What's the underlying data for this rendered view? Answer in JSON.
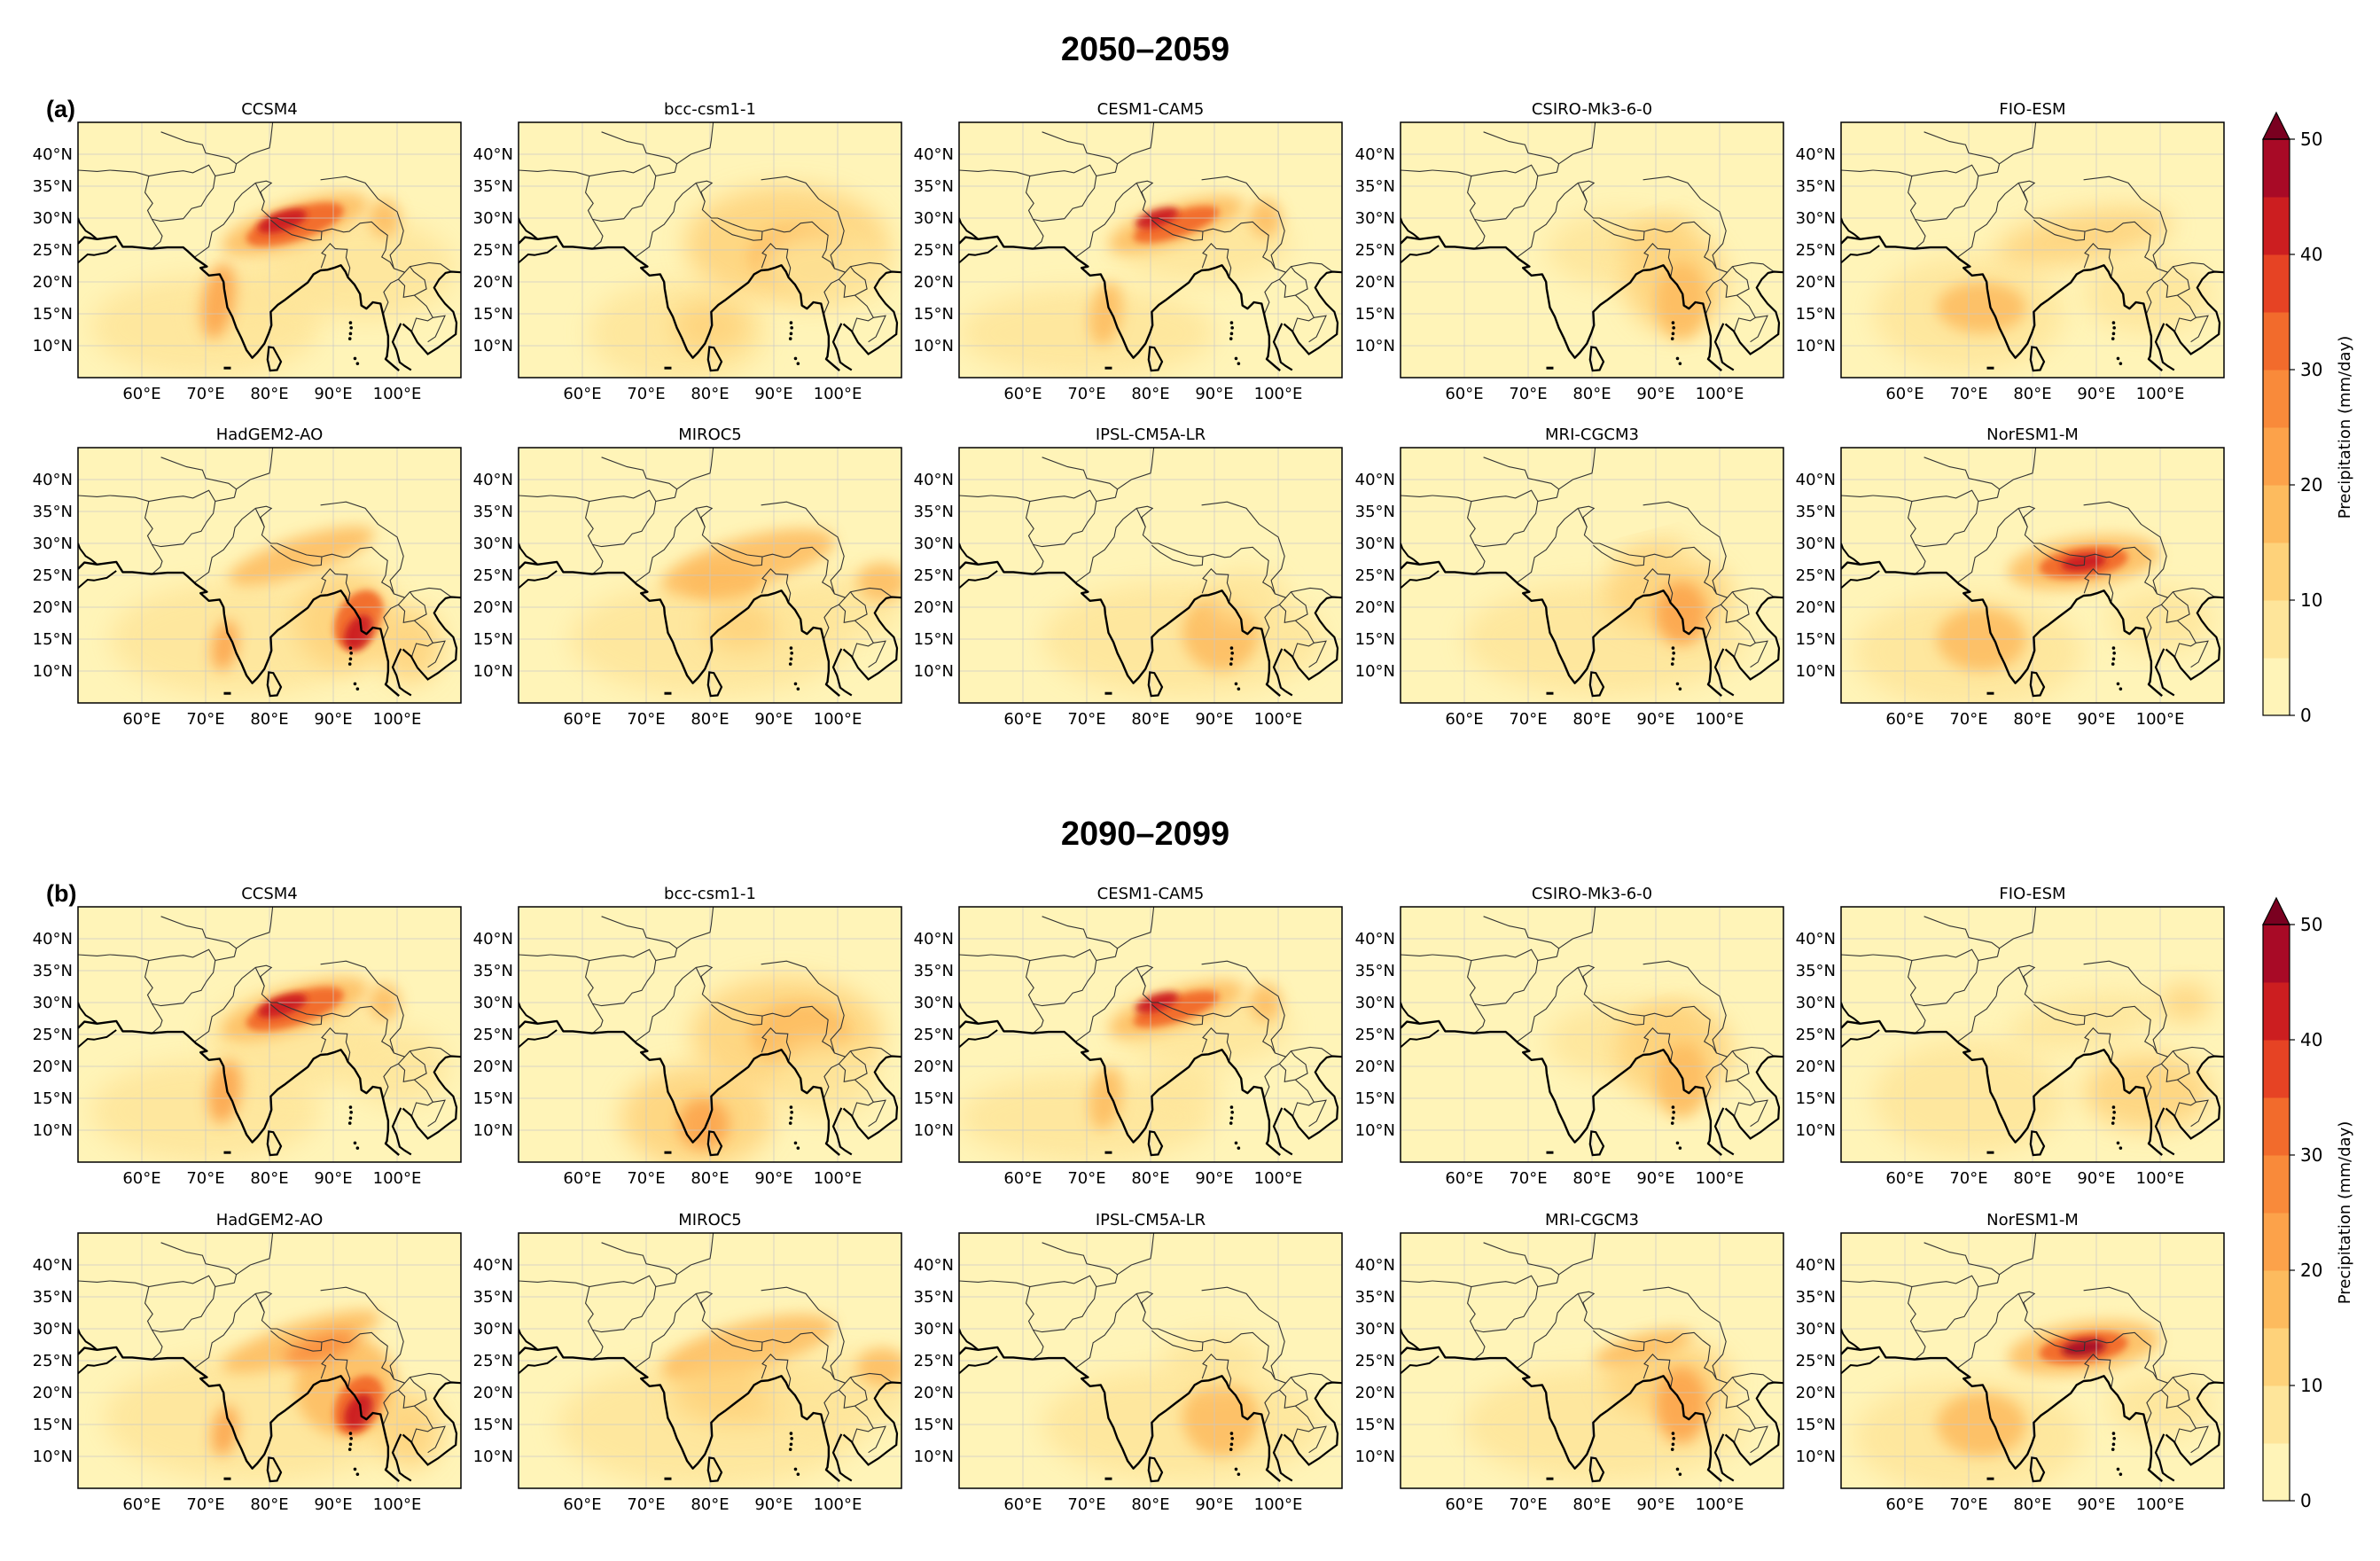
{
  "chart_data": {
    "type": "heatmap",
    "description_variable": "Precipitation (mm/day)",
    "colorbar": {
      "label": "Precipitation (mm/day)",
      "ticks": [
        0,
        10,
        20,
        30,
        40,
        50
      ],
      "levels": [
        0,
        5,
        10,
        15,
        20,
        25,
        30,
        35,
        40,
        45,
        50
      ],
      "extend": "max",
      "colors": [
        "#fff4b8",
        "#fee59a",
        "#fed27a",
        "#fdbb5e",
        "#fca24a",
        "#f98a3a",
        "#f26b2c",
        "#e64324",
        "#cc1e20",
        "#a80a26",
        "#7a0020"
      ]
    },
    "axes": {
      "xticks": [
        "60°E",
        "70°E",
        "80°E",
        "90°E",
        "100°E"
      ],
      "yticks": [
        "40°N",
        "35°N",
        "30°N",
        "25°N",
        "20°N",
        "15°N",
        "10°N"
      ],
      "xlim_degE": [
        50,
        110
      ],
      "ylim_degN": [
        5,
        45
      ],
      "grid": true
    },
    "panels": [
      {
        "letter": "(a)",
        "period": "2050–2059",
        "models": [
          "CCSM4",
          "bcc-csm1-1",
          "CESM1-CAM5",
          "CSIRO-Mk3-6-0",
          "FIO-ESM",
          "HadGEM2-AO",
          "MIROC5",
          "IPSL-CM5A-LR",
          "MRI-CGCM3",
          "NorESM1-M"
        ]
      },
      {
        "letter": "(b)",
        "period": "2090–2099",
        "models": [
          "CCSM4",
          "bcc-csm1-1",
          "CESM1-CAM5",
          "CSIRO-Mk3-6-0",
          "FIO-ESM",
          "HadGEM2-AO",
          "MIROC5",
          "IPSL-CM5A-LR",
          "MRI-CGCM3",
          "NorESM1-M"
        ]
      }
    ]
  },
  "colors": {
    "background": "#ffffff",
    "map_base": "#fff4b8",
    "coast": "#000000",
    "border": "#333333",
    "grid": "#c8c8c8"
  }
}
